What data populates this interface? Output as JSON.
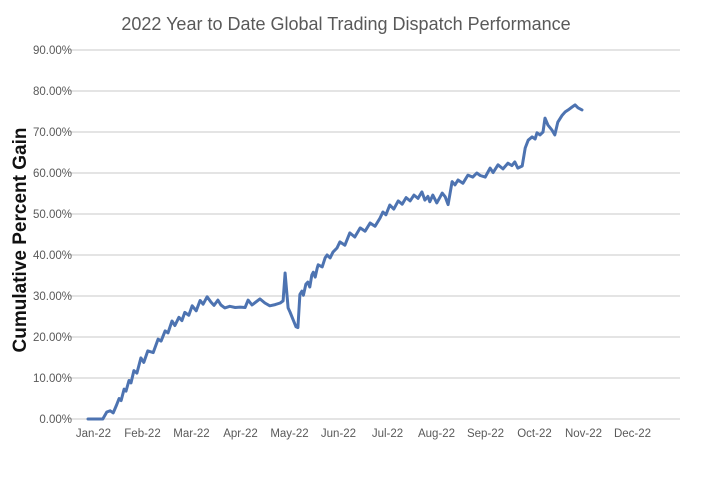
{
  "chart_style": {
    "line_color": "#4d73b1",
    "gridline_color": "#dcdcdc",
    "tick_text_color": "#595959",
    "title_text_color": "#595959",
    "axis_title_text_color": "#111111",
    "background_color": "#ffffff"
  },
  "chart_data": {
    "type": "line",
    "title": "2022 Year to Date Global Trading Dispatch Performance",
    "xlabel": "",
    "ylabel": "Cumulative Percent Gain",
    "x_categories": [
      "Jan-22",
      "Feb-22",
      "Mar-22",
      "Apr-22",
      "May-22",
      "Jun-22",
      "Jul-22",
      "Aug-22",
      "Sep-22",
      "Oct-22",
      "Nov-22",
      "Dec-22"
    ],
    "y_tick_values": [
      0,
      10,
      20,
      30,
      40,
      50,
      60,
      70,
      80,
      90
    ],
    "y_tick_labels": [
      "0.00%",
      "10.00%",
      "20.00%",
      "30.00%",
      "40.00%",
      "50.00%",
      "60.00%",
      "70.00%",
      "80.00%",
      "90.00%"
    ],
    "ylim": [
      0,
      90
    ],
    "grid": true,
    "legend": false,
    "x_axis_note": "x values below are months elapsed since Jan 1 2022 (0 = Jan-22 tick, 10 = Nov-22 tick); plotted data runs from Jan-22 through end of Oct-22, ending near 75.4%",
    "series": [
      {
        "name": "Cumulative Percent Gain",
        "points": [
          [
            0.0,
            0.0
          ],
          [
            0.3,
            0.0
          ],
          [
            0.38,
            1.7
          ],
          [
            0.45,
            2.0
          ],
          [
            0.51,
            1.5
          ],
          [
            0.57,
            3.2
          ],
          [
            0.63,
            5.0
          ],
          [
            0.67,
            4.5
          ],
          [
            0.73,
            7.3
          ],
          [
            0.77,
            6.8
          ],
          [
            0.83,
            9.4
          ],
          [
            0.87,
            8.8
          ],
          [
            0.93,
            11.8
          ],
          [
            0.99,
            11.2
          ],
          [
            1.07,
            14.9
          ],
          [
            1.13,
            13.8
          ],
          [
            1.21,
            16.6
          ],
          [
            1.32,
            16.2
          ],
          [
            1.42,
            19.5
          ],
          [
            1.48,
            19.0
          ],
          [
            1.56,
            21.5
          ],
          [
            1.62,
            21.0
          ],
          [
            1.7,
            23.9
          ],
          [
            1.76,
            22.8
          ],
          [
            1.84,
            24.8
          ],
          [
            1.9,
            24.0
          ],
          [
            1.96,
            26.0
          ],
          [
            2.04,
            25.3
          ],
          [
            2.11,
            27.6
          ],
          [
            2.19,
            26.4
          ],
          [
            2.27,
            28.9
          ],
          [
            2.33,
            28.0
          ],
          [
            2.41,
            29.8
          ],
          [
            2.49,
            28.5
          ],
          [
            2.55,
            27.7
          ],
          [
            2.63,
            29.0
          ],
          [
            2.69,
            27.8
          ],
          [
            2.77,
            27.1
          ],
          [
            2.87,
            27.5
          ],
          [
            2.98,
            27.2
          ],
          [
            3.08,
            27.3
          ],
          [
            3.18,
            27.2
          ],
          [
            3.24,
            29.0
          ],
          [
            3.32,
            27.8
          ],
          [
            3.48,
            29.3
          ],
          [
            3.58,
            28.3
          ],
          [
            3.68,
            27.6
          ],
          [
            3.79,
            27.9
          ],
          [
            3.89,
            28.3
          ],
          [
            3.95,
            28.8
          ],
          [
            3.99,
            35.6
          ],
          [
            4.05,
            27.1
          ],
          [
            4.09,
            26.1
          ],
          [
            4.15,
            24.3
          ],
          [
            4.21,
            22.5
          ],
          [
            4.25,
            22.3
          ],
          [
            4.29,
            30.4
          ],
          [
            4.33,
            31.2
          ],
          [
            4.36,
            30.2
          ],
          [
            4.41,
            32.9
          ],
          [
            4.45,
            33.4
          ],
          [
            4.49,
            32.2
          ],
          [
            4.53,
            35.1
          ],
          [
            4.56,
            35.8
          ],
          [
            4.6,
            34.6
          ],
          [
            4.64,
            36.8
          ],
          [
            4.66,
            37.6
          ],
          [
            4.74,
            37.1
          ],
          [
            4.8,
            39.3
          ],
          [
            4.84,
            40.0
          ],
          [
            4.9,
            39.3
          ],
          [
            4.96,
            40.7
          ],
          [
            5.04,
            41.7
          ],
          [
            5.1,
            43.2
          ],
          [
            5.2,
            42.4
          ],
          [
            5.3,
            45.4
          ],
          [
            5.4,
            44.4
          ],
          [
            5.51,
            46.6
          ],
          [
            5.61,
            45.8
          ],
          [
            5.71,
            47.8
          ],
          [
            5.81,
            47.0
          ],
          [
            5.91,
            49.0
          ],
          [
            5.97,
            50.5
          ],
          [
            6.03,
            49.8
          ],
          [
            6.11,
            52.2
          ],
          [
            6.19,
            51.2
          ],
          [
            6.28,
            53.2
          ],
          [
            6.36,
            52.4
          ],
          [
            6.44,
            54.0
          ],
          [
            6.52,
            53.2
          ],
          [
            6.6,
            54.6
          ],
          [
            6.68,
            53.8
          ],
          [
            6.76,
            55.4
          ],
          [
            6.82,
            53.4
          ],
          [
            6.88,
            54.3
          ],
          [
            6.92,
            53.0
          ],
          [
            6.98,
            54.6
          ],
          [
            7.06,
            52.7
          ],
          [
            7.13,
            54.2
          ],
          [
            7.17,
            55.1
          ],
          [
            7.23,
            54.2
          ],
          [
            7.29,
            52.3
          ],
          [
            7.37,
            57.9
          ],
          [
            7.43,
            57.1
          ],
          [
            7.49,
            58.3
          ],
          [
            7.59,
            57.5
          ],
          [
            7.69,
            59.5
          ],
          [
            7.79,
            59.0
          ],
          [
            7.87,
            60.0
          ],
          [
            7.94,
            59.4
          ],
          [
            8.04,
            59.0
          ],
          [
            8.14,
            61.2
          ],
          [
            8.2,
            60.1
          ],
          [
            8.3,
            62.0
          ],
          [
            8.4,
            61.0
          ],
          [
            8.5,
            62.4
          ],
          [
            8.58,
            61.8
          ],
          [
            8.64,
            62.7
          ],
          [
            8.7,
            61.2
          ],
          [
            8.79,
            61.7
          ],
          [
            8.85,
            66.1
          ],
          [
            8.91,
            68.0
          ],
          [
            8.99,
            68.8
          ],
          [
            9.05,
            68.3
          ],
          [
            9.09,
            69.8
          ],
          [
            9.15,
            69.3
          ],
          [
            9.21,
            70.0
          ],
          [
            9.25,
            73.4
          ],
          [
            9.31,
            71.7
          ],
          [
            9.39,
            70.5
          ],
          [
            9.45,
            69.3
          ],
          [
            9.51,
            72.4
          ],
          [
            9.6,
            74.1
          ],
          [
            9.66,
            74.9
          ],
          [
            9.72,
            75.4
          ],
          [
            9.8,
            76.1
          ],
          [
            9.86,
            76.6
          ],
          [
            9.92,
            75.9
          ],
          [
            10.0,
            75.4
          ]
        ]
      }
    ]
  }
}
